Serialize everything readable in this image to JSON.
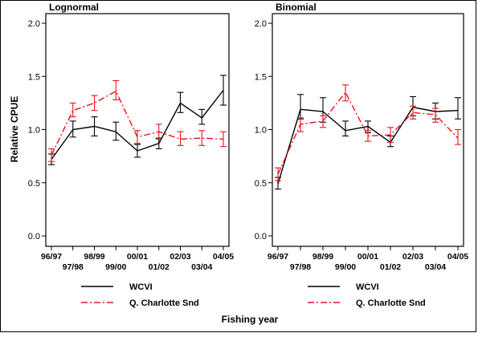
{
  "chart_data": [
    {
      "type": "line",
      "title": "Lognormal",
      "ylabel": "Relative CPUE",
      "xlabel": "Fishing year",
      "ylim": [
        0,
        2
      ],
      "yticks": [
        "0.0",
        "0.5",
        "1.0",
        "1.5",
        "2.0"
      ],
      "categories": [
        "96/97",
        "97/98",
        "98/99",
        "99/00",
        "00/01",
        "01/02",
        "02/03",
        "03/04",
        "04/05"
      ],
      "series": [
        {
          "name": "WCVI",
          "color": "#000000",
          "style": "solid",
          "values": [
            0.72,
            1.0,
            1.03,
            0.98,
            0.8,
            0.87,
            1.25,
            1.11,
            1.37
          ],
          "lower": [
            0.67,
            0.93,
            0.94,
            0.9,
            0.74,
            0.82,
            1.16,
            1.05,
            1.23
          ],
          "upper": [
            0.77,
            1.08,
            1.12,
            1.07,
            0.86,
            0.92,
            1.35,
            1.19,
            1.51
          ]
        },
        {
          "name": "Q. Charlotte Snd",
          "color": "#e8141b",
          "style": "dashdot",
          "values": [
            0.76,
            1.18,
            1.25,
            1.36,
            0.93,
            0.98,
            0.91,
            0.92,
            0.91
          ],
          "lower": [
            0.7,
            1.12,
            1.18,
            1.28,
            0.87,
            0.91,
            0.85,
            0.85,
            0.84
          ],
          "upper": [
            0.82,
            1.25,
            1.32,
            1.46,
            0.99,
            1.05,
            0.98,
            0.99,
            0.98
          ]
        }
      ]
    },
    {
      "type": "line",
      "title": "Binomial",
      "ylabel": "",
      "xlabel": "Fishing year",
      "ylim": [
        0,
        2
      ],
      "yticks": [
        "0.0",
        "0.5",
        "1.0",
        "1.5",
        "2.0"
      ],
      "categories": [
        "96/97",
        "97/98",
        "98/99",
        "99/00",
        "00/01",
        "01/02",
        "02/03",
        "03/04",
        "04/05"
      ],
      "series": [
        {
          "name": "WCVI",
          "color": "#000000",
          "style": "solid",
          "values": [
            0.49,
            1.19,
            1.17,
            0.99,
            1.03,
            0.88,
            1.21,
            1.17,
            1.18
          ],
          "lower": [
            0.44,
            1.1,
            1.07,
            0.94,
            0.97,
            0.84,
            1.13,
            1.1,
            1.1
          ],
          "upper": [
            0.55,
            1.33,
            1.3,
            1.08,
            1.08,
            0.94,
            1.31,
            1.25,
            1.3
          ]
        },
        {
          "name": "Q. Charlotte Snd",
          "color": "#e8141b",
          "style": "dashdot",
          "values": [
            0.58,
            1.05,
            1.08,
            1.35,
            0.94,
            0.95,
            1.16,
            1.14,
            0.92
          ],
          "lower": [
            0.52,
            0.98,
            1.02,
            1.27,
            0.89,
            0.88,
            1.1,
            1.07,
            0.86
          ],
          "upper": [
            0.64,
            1.11,
            1.13,
            1.42,
            0.99,
            1.02,
            1.22,
            1.2,
            1.0
          ]
        }
      ]
    }
  ],
  "legend": [
    {
      "label": "WCVI",
      "color": "#000000",
      "style": "solid"
    },
    {
      "label": "Q. Charlotte Snd",
      "color": "#e8141b",
      "style": "dashdot"
    }
  ],
  "xlabel": "Fishing year"
}
